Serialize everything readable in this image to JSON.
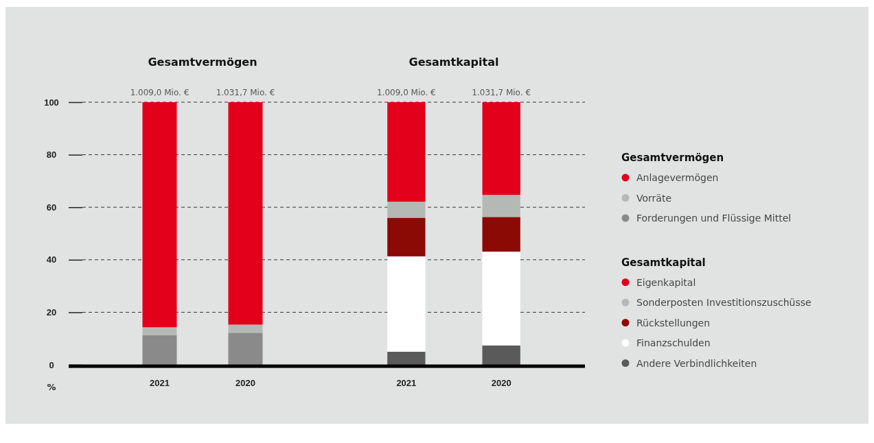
{
  "chart_data": [
    {
      "type": "bar",
      "title": "Gesamtvermögen",
      "ylabel": "%",
      "categories": [
        "2021",
        "2020"
      ],
      "stacked": true,
      "ylim": [
        0,
        100
      ],
      "yticks": [
        0,
        20,
        40,
        60,
        80,
        100
      ],
      "grid": "y",
      "legend": "right",
      "legend_title": "Gesamtvermögen",
      "annotations": [
        {
          "text": "1.009,0 Mio. €",
          "x": "2021",
          "y": 100
        },
        {
          "text": "1.031,7 Mio. €",
          "x": "2020",
          "y": 100
        }
      ],
      "series": [
        {
          "name": "Forderungen und Flüssige Mittel",
          "color": "#8a8a8a",
          "values": [
            11.3,
            12.2
          ]
        },
        {
          "name": "Vorräte",
          "color": "#b5b9b6",
          "values": [
            3.0,
            3.1
          ]
        },
        {
          "name": "Anlagevermögen",
          "color": "#e2001a",
          "values": [
            85.7,
            84.7
          ]
        }
      ]
    },
    {
      "type": "bar",
      "title": "Gesamtkapital",
      "categories": [
        "2021",
        "2020"
      ],
      "stacked": true,
      "ylim": [
        0,
        100
      ],
      "yticks": [
        0,
        20,
        40,
        60,
        80,
        100
      ],
      "tick_labels": "x",
      "grid": "y",
      "legend": "right",
      "legend_title": "Gesamtkapital",
      "annotations": [
        {
          "text": "1.009,0 Mio. €",
          "x": "2021",
          "y": 100
        },
        {
          "text": "1.031,7 Mio. €",
          "x": "2020",
          "y": 100
        }
      ],
      "series": [
        {
          "name": "Andere Verbindlichkeiten",
          "color": "#5a5a5a",
          "values": [
            5.0,
            7.4
          ]
        },
        {
          "name": "Finanzschulden",
          "color": "#ffffff",
          "values": [
            36.3,
            35.7
          ]
        },
        {
          "name": "Rückstellungen",
          "color": "#8b0a05",
          "values": [
            14.7,
            13.2
          ]
        },
        {
          "name": "Sonderposten Investitionszuschüsse",
          "color": "#b5b9b6",
          "values": [
            6.1,
            8.4
          ]
        },
        {
          "name": "Eigenkapital",
          "color": "#e2001a",
          "values": [
            37.9,
            35.3
          ]
        }
      ]
    }
  ]
}
